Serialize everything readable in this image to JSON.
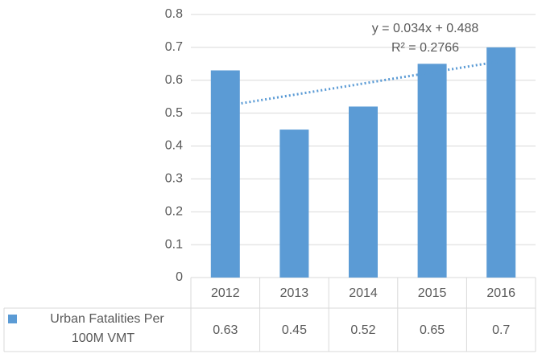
{
  "chart_data": {
    "type": "bar",
    "categories": [
      "2012",
      "2013",
      "2014",
      "2015",
      "2016"
    ],
    "series": [
      {
        "name": "Urban Fatalities Per 100M VMT",
        "color": "#5b9bd5",
        "values": [
          0.63,
          0.45,
          0.52,
          0.65,
          0.7
        ]
      }
    ],
    "ylim": [
      0,
      0.8
    ],
    "yticks": [
      0,
      0.1,
      0.2,
      0.3,
      0.4,
      0.5,
      0.6,
      0.7,
      0.8
    ],
    "grid": true,
    "trendline": {
      "type": "linear",
      "equation": "y = 0.034x + 0.488",
      "r_squared": "R² = 0.2766"
    },
    "data_table": true
  }
}
